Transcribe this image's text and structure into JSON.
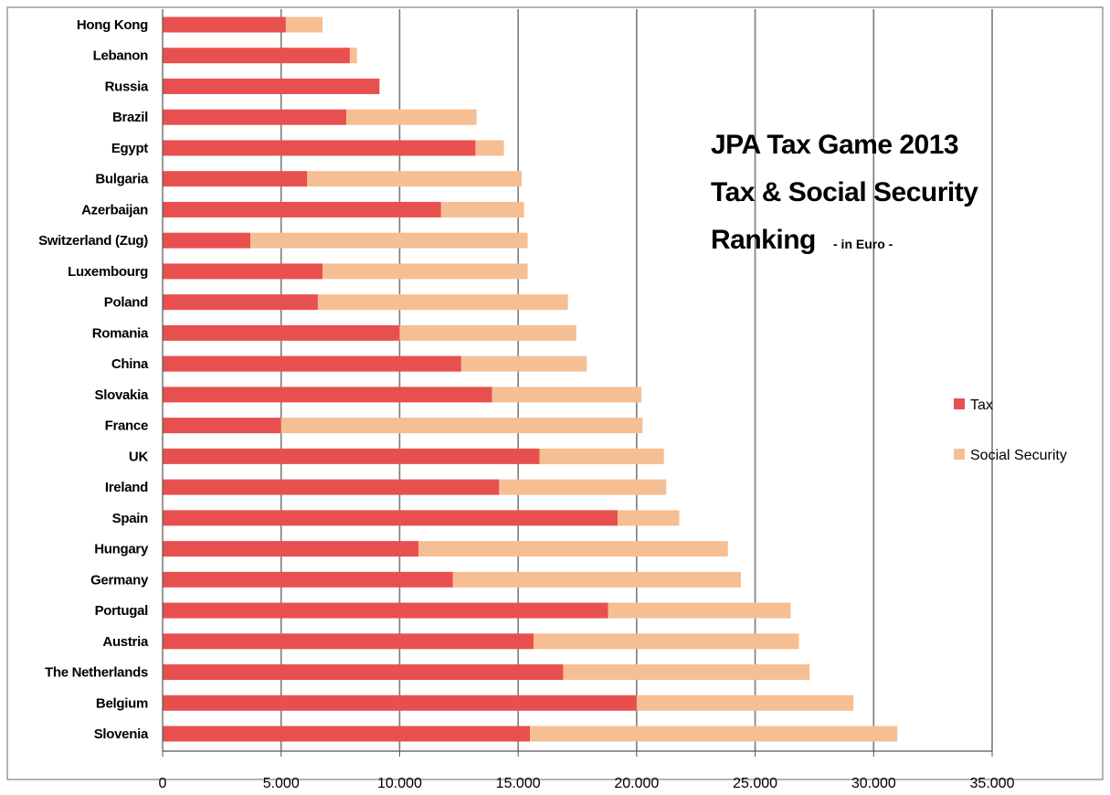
{
  "chart_data": {
    "type": "bar",
    "orientation": "horizontal",
    "stacked": true,
    "title_lines": [
      "JPA Tax Game 2013",
      "Tax & Social Security",
      "Ranking"
    ],
    "title_suffix": "- in Euro -",
    "categories": [
      "Hong Kong",
      "Lebanon",
      "Russia",
      "Brazil",
      "Egypt",
      "Bulgaria",
      "Azerbaijan",
      "Switzerland (Zug)",
      "Luxembourg",
      "Poland",
      "Romania",
      "China",
      "Slovakia",
      "France",
      "UK",
      "Ireland",
      "Spain",
      "Hungary",
      "Germany",
      "Portugal",
      "Austria",
      "The Netherlands",
      "Belgium",
      "Slovenia"
    ],
    "series": [
      {
        "name": "Tax",
        "color": "#e8504f",
        "values": [
          5200,
          7900,
          9150,
          7750,
          13200,
          6100,
          11750,
          3700,
          6750,
          6550,
          10000,
          12600,
          13900,
          5000,
          15900,
          14200,
          19200,
          10800,
          12250,
          18800,
          15650,
          16900,
          20000,
          15500
        ]
      },
      {
        "name": "Social Security",
        "color": "#f6bf93",
        "values": [
          1550,
          300,
          0,
          5500,
          1200,
          9050,
          3500,
          11700,
          8650,
          10550,
          7450,
          5300,
          6300,
          15250,
          5250,
          7050,
          2600,
          13050,
          12150,
          7700,
          11200,
          10400,
          9150,
          15500
        ]
      }
    ],
    "x_ticks": [
      "0",
      "5.000",
      "10.000",
      "15.000",
      "20.000",
      "25.000",
      "30.000",
      "35.000"
    ],
    "xlim": [
      0,
      35000
    ],
    "grid": true,
    "legend_position": "right"
  }
}
